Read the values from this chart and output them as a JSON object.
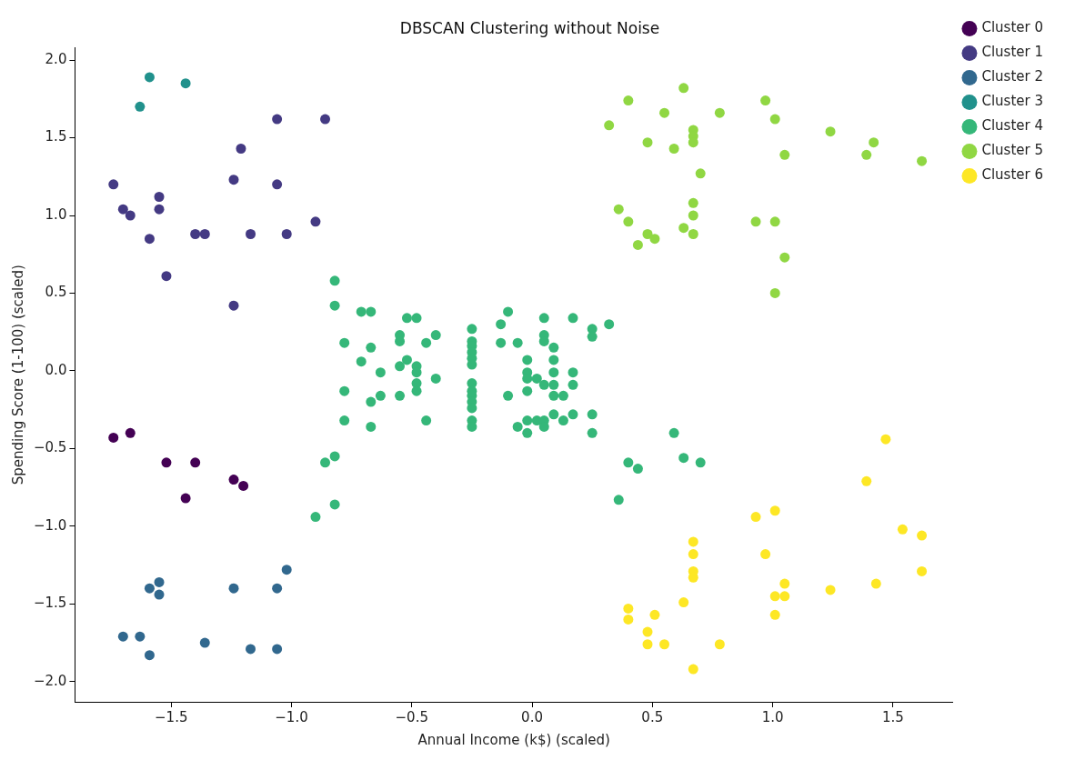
{
  "chart_data": {
    "type": "scatter",
    "title": "DBSCAN Clustering without Noise",
    "xlabel": "Annual Income (k$) (scaled)",
    "ylabel": "Spending Score (1-100) (scaled)",
    "xlim": [
      -1.9,
      1.75
    ],
    "ylim": [
      -2.13,
      2.08
    ],
    "xticks": [
      {
        "value": -1.5,
        "label": "−1.5"
      },
      {
        "value": -1,
        "label": "−1.0"
      },
      {
        "value": -0.5,
        "label": "−0.5"
      },
      {
        "value": 0,
        "label": "0.0"
      },
      {
        "value": 0.5,
        "label": "0.5"
      },
      {
        "value": 1,
        "label": "1.0"
      },
      {
        "value": 1.5,
        "label": "1.5"
      }
    ],
    "yticks": [
      {
        "value": -2,
        "label": "−2.0"
      },
      {
        "value": -1.5,
        "label": "−1.5"
      },
      {
        "value": -1,
        "label": "−1.0"
      },
      {
        "value": -0.5,
        "label": "−0.5"
      },
      {
        "value": 0,
        "label": "0.0"
      },
      {
        "value": 0.5,
        "label": "0.5"
      },
      {
        "value": 1,
        "label": "1.0"
      },
      {
        "value": 1.5,
        "label": "1.5"
      },
      {
        "value": 2,
        "label": "2.0"
      }
    ],
    "grid": false,
    "legend": "top right",
    "marker": "circle",
    "series": [
      {
        "name": "Cluster 0",
        "color": "#440154",
        "x": [
          -1.74,
          -1.67,
          -1.52,
          -1.4,
          -1.44,
          -1.24,
          -1.2
        ],
        "values": [
          -0.43,
          -0.4,
          -0.59,
          -0.59,
          -0.82,
          -0.7,
          -0.74
        ]
      },
      {
        "name": "Cluster 1",
        "color": "#443a83",
        "x": [
          -1.74,
          -1.7,
          -1.67,
          -1.59,
          -1.55,
          -1.55,
          -1.52,
          -1.4,
          -1.36,
          -1.24,
          -1.24,
          -1.21,
          -1.17,
          -1.06,
          -1.06,
          -1.02,
          -0.9,
          -0.86
        ],
        "values": [
          1.2,
          1.04,
          1.0,
          0.85,
          1.12,
          1.04,
          0.61,
          0.88,
          0.88,
          1.23,
          0.42,
          1.43,
          0.88,
          1.62,
          1.2,
          0.88,
          0.96,
          1.62
        ]
      },
      {
        "name": "Cluster 2",
        "color": "#31688e",
        "x": [
          -1.7,
          -1.63,
          -1.59,
          -1.59,
          -1.55,
          -1.55,
          -1.36,
          -1.24,
          -1.17,
          -1.06,
          -1.06,
          -1.02
        ],
        "values": [
          -1.71,
          -1.71,
          -1.4,
          -1.83,
          -1.36,
          -1.44,
          -1.75,
          -1.4,
          -1.79,
          -1.4,
          -1.79,
          -1.28
        ]
      },
      {
        "name": "Cluster 3",
        "color": "#21918c",
        "x": [
          -1.63,
          -1.59,
          -1.44
        ],
        "values": [
          1.7,
          1.89,
          1.85
        ]
      },
      {
        "name": "Cluster 4",
        "color": "#35b779",
        "x": [
          -0.82,
          -0.82,
          -0.71,
          -0.67,
          -0.52,
          -0.48,
          -0.78,
          -0.67,
          -0.55,
          -0.55,
          -0.44,
          -0.4,
          -0.71,
          -0.63,
          -0.55,
          -0.52,
          -0.48,
          -0.48,
          -0.4,
          -0.48,
          -0.48,
          -0.78,
          -0.63,
          -0.67,
          -0.55,
          -0.78,
          -0.67,
          -0.44,
          -0.25,
          -0.25,
          -0.25,
          -0.25,
          -0.25,
          -0.25,
          -0.25,
          -0.25,
          -0.25,
          -0.25,
          -0.25,
          -0.25,
          -0.25,
          -0.1,
          -0.13,
          -0.13,
          -0.06,
          0.05,
          0.17,
          0.25,
          0.25,
          0.32,
          0.05,
          0.05,
          0.09,
          0.09,
          0.09,
          0.09,
          -0.02,
          -0.02,
          -0.02,
          0.02,
          -0.02,
          0.05,
          0.09,
          0.13,
          0.17,
          0.17,
          -0.1,
          -0.02,
          0.02,
          0.05,
          0.05,
          -0.06,
          -0.02,
          0.09,
          0.13,
          0.17,
          0.25,
          0.25,
          -0.86,
          -0.82,
          -0.82,
          -0.9,
          0.59,
          0.4,
          0.44,
          0.63,
          0.7,
          0.36
        ],
        "values": [
          0.58,
          0.42,
          0.38,
          0.38,
          0.34,
          0.34,
          0.18,
          0.15,
          0.23,
          0.19,
          0.18,
          0.23,
          0.06,
          -0.01,
          0.03,
          0.07,
          0.03,
          -0.01,
          -0.05,
          -0.08,
          -0.13,
          -0.13,
          -0.16,
          -0.2,
          -0.16,
          -0.32,
          -0.36,
          -0.32,
          0.27,
          0.19,
          0.16,
          0.12,
          0.08,
          0.04,
          -0.08,
          -0.13,
          -0.16,
          -0.2,
          -0.24,
          -0.32,
          -0.36,
          0.38,
          0.3,
          0.18,
          0.18,
          0.34,
          0.34,
          0.27,
          0.22,
          0.3,
          0.23,
          0.19,
          0.15,
          0.07,
          -0.01,
          -0.09,
          0.07,
          -0.01,
          -0.05,
          -0.05,
          -0.13,
          -0.09,
          -0.16,
          -0.16,
          -0.01,
          -0.09,
          -0.16,
          -0.32,
          -0.32,
          -0.32,
          -0.36,
          -0.36,
          -0.4,
          -0.28,
          -0.32,
          -0.28,
          -0.28,
          -0.4,
          -0.59,
          -0.55,
          -0.86,
          -0.94,
          -0.4,
          -0.59,
          -0.63,
          -0.56,
          -0.59,
          -0.83
        ]
      },
      {
        "name": "Cluster 5",
        "color": "#90d743",
        "x": [
          0.32,
          0.4,
          0.48,
          0.55,
          0.59,
          0.63,
          0.67,
          0.67,
          0.67,
          0.7,
          0.78,
          0.36,
          0.4,
          0.48,
          0.44,
          0.51,
          0.63,
          0.67,
          0.67,
          0.67,
          0.93,
          1.01,
          0.97,
          1.01,
          1.05,
          1.05,
          1.01,
          1.24,
          1.39,
          1.42,
          1.62
        ],
        "values": [
          1.58,
          1.74,
          1.47,
          1.66,
          1.43,
          1.82,
          1.55,
          1.51,
          1.47,
          1.27,
          1.66,
          1.04,
          0.96,
          0.88,
          0.81,
          0.85,
          0.92,
          1.08,
          1.0,
          0.88,
          0.96,
          0.96,
          1.74,
          1.62,
          1.39,
          0.73,
          0.5,
          1.54,
          1.39,
          1.47,
          1.35
        ]
      },
      {
        "name": "Cluster 6",
        "color": "#fde725",
        "x": [
          1.47,
          1.39,
          0.93,
          1.01,
          0.97,
          1.54,
          1.62,
          1.62,
          1.43,
          1.24,
          1.05,
          1.01,
          1.05,
          1.01,
          0.67,
          0.67,
          0.67,
          0.67,
          0.63,
          0.4,
          0.4,
          0.51,
          0.48,
          0.48,
          0.55,
          0.78,
          0.67
        ],
        "values": [
          -0.44,
          -0.71,
          -0.94,
          -0.9,
          -1.18,
          -1.02,
          -1.06,
          -1.29,
          -1.37,
          -1.41,
          -1.37,
          -1.45,
          -1.45,
          -1.57,
          -1.1,
          -1.18,
          -1.29,
          -1.33,
          -1.49,
          -1.53,
          -1.6,
          -1.57,
          -1.68,
          -1.76,
          -1.76,
          -1.76,
          -1.92
        ]
      }
    ]
  }
}
